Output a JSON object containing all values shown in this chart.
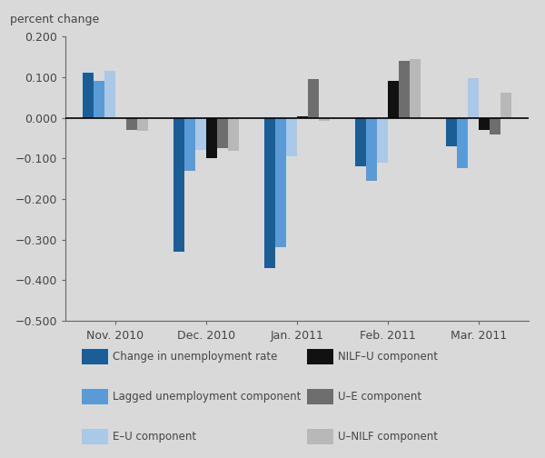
{
  "months": [
    "Nov. 2010",
    "Dec. 2010",
    "Jan. 2011",
    "Feb. 2011",
    "Mar. 2011"
  ],
  "series_order": [
    "Change in unemployment rate",
    "Lagged unemployment component",
    "E-U component",
    "NILF-U component",
    "U-E component",
    "U-NILF component"
  ],
  "series": {
    "Change in unemployment rate": {
      "color": "#1b5e96",
      "values": [
        0.11,
        -0.33,
        -0.37,
        -0.12,
        -0.07
      ]
    },
    "Lagged unemployment component": {
      "color": "#5b9bd5",
      "values": [
        0.09,
        -0.13,
        -0.32,
        -0.155,
        -0.125
      ]
    },
    "E-U component": {
      "color": "#aac8e8",
      "values": [
        0.115,
        -0.08,
        -0.095,
        -0.11,
        0.098
      ]
    },
    "NILF-U component": {
      "color": "#111111",
      "values": [
        0.0,
        -0.1,
        0.003,
        0.09,
        -0.03
      ]
    },
    "U-E component": {
      "color": "#6e6e6e",
      "values": [
        -0.03,
        -0.075,
        0.096,
        0.14,
        -0.042
      ]
    },
    "U-NILF component": {
      "color": "#b8b8b8",
      "values": [
        -0.033,
        -0.082,
        -0.008,
        0.145,
        0.062
      ]
    }
  },
  "ylim": [
    -0.5,
    0.2
  ],
  "yticks": [
    -0.5,
    -0.4,
    -0.3,
    -0.2,
    -0.1,
    0.0,
    0.1,
    0.2
  ],
  "ylabel": "percent change",
  "background_color": "#d9d9d9",
  "plot_bg_color": "#d9d9d9",
  "legend_order": [
    "Change in unemployment rate",
    "NILF–U component",
    "Lagged unemployment component",
    "U–E component",
    "E–U component",
    "U–NILF component"
  ],
  "legend_keys": [
    "Change in unemployment rate",
    "NILF-U component",
    "Lagged unemployment component",
    "U-E component",
    "E-U component",
    "U-NILF component"
  ]
}
